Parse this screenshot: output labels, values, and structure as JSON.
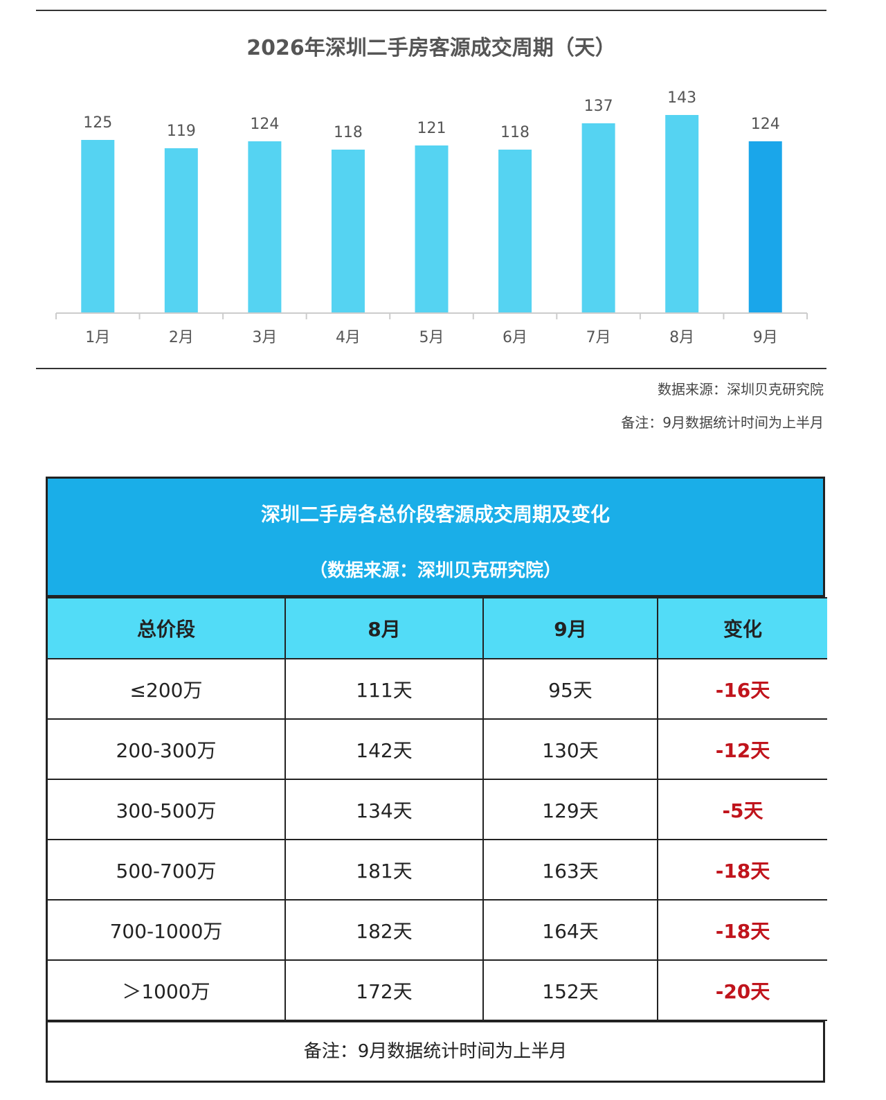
{
  "chart_data": {
    "type": "bar",
    "title": "2026年深圳二手房客源成交周期（天）",
    "categories": [
      "1月",
      "2月",
      "3月",
      "4月",
      "5月",
      "6月",
      "7月",
      "8月",
      "9月"
    ],
    "values": [
      125,
      119,
      124,
      118,
      121,
      118,
      137,
      143,
      124
    ],
    "ylim": [
      0,
      150
    ],
    "xlabel": "",
    "ylabel": "",
    "colors": {
      "bar": "#55d3f2",
      "highlight": "#1aa6ea",
      "axis": "#cccccc"
    },
    "highlight_index": 8
  },
  "notes": {
    "source": "数据来源：深圳贝克研究院",
    "remark": "备注：9月数据统计时间为上半月"
  },
  "table": {
    "title": "深圳二手房各总价段客源成交周期及变化",
    "subtitle": "（数据来源：深圳贝克研究院）",
    "headers": [
      "总价段",
      "8月",
      "9月",
      "变化"
    ],
    "rows": [
      [
        "≤200万",
        "111天",
        "95天",
        "-16天"
      ],
      [
        "200-300万",
        "142天",
        "130天",
        "-12天"
      ],
      [
        "300-500万",
        "134天",
        "129天",
        "-5天"
      ],
      [
        "500-700万",
        "181天",
        "163天",
        "-18天"
      ],
      [
        "700-1000万",
        "182天",
        "164天",
        "-18天"
      ],
      [
        "＞1000万",
        "172天",
        "152天",
        "-20天"
      ]
    ],
    "footnote": "备注：9月数据统计时间为上半月",
    "colors": {
      "header_bg": "#1aaee8",
      "col_header_bg": "#52dcf7",
      "change_text": "#c0141c"
    }
  }
}
